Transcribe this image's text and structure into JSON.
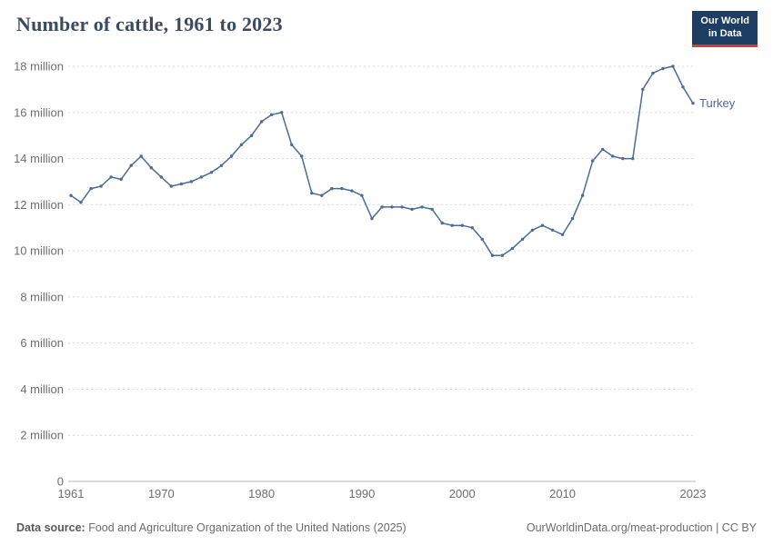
{
  "header": {
    "title": "Number of cattle, 1961 to 2023",
    "logo": {
      "line1": "Our World",
      "line2": "in Data"
    }
  },
  "chart_data": {
    "type": "line",
    "title": "Number of cattle, 1961 to 2023",
    "unit": "million",
    "xlim": [
      1961,
      2023
    ],
    "ylim": [
      0,
      18
    ],
    "grid": true,
    "legend_position": "end-of-line",
    "xticks": [
      1961,
      1970,
      1980,
      1990,
      2000,
      2010,
      2023
    ],
    "yticks": [
      {
        "value": 0,
        "label": "0"
      },
      {
        "value": 2,
        "label": "2 million"
      },
      {
        "value": 4,
        "label": "4 million"
      },
      {
        "value": 6,
        "label": "6 million"
      },
      {
        "value": 8,
        "label": "8 million"
      },
      {
        "value": 10,
        "label": "10 million"
      },
      {
        "value": 12,
        "label": "12 million"
      },
      {
        "value": 14,
        "label": "14 million"
      },
      {
        "value": 16,
        "label": "16 million"
      },
      {
        "value": 18,
        "label": "18 million"
      }
    ],
    "series": [
      {
        "name": "Turkey",
        "color": "#4c6a9c",
        "x": [
          1961,
          1962,
          1963,
          1964,
          1965,
          1966,
          1967,
          1968,
          1969,
          1970,
          1971,
          1972,
          1973,
          1974,
          1975,
          1976,
          1977,
          1978,
          1979,
          1980,
          1981,
          1982,
          1983,
          1984,
          1985,
          1986,
          1987,
          1988,
          1989,
          1990,
          1991,
          1992,
          1993,
          1994,
          1995,
          1996,
          1997,
          1998,
          1999,
          2000,
          2001,
          2002,
          2003,
          2004,
          2005,
          2006,
          2007,
          2008,
          2009,
          2010,
          2011,
          2012,
          2013,
          2014,
          2015,
          2016,
          2017,
          2018,
          2019,
          2020,
          2021,
          2022,
          2023
        ],
        "values": [
          12.4,
          12.1,
          12.7,
          12.8,
          13.2,
          13.1,
          13.7,
          14.1,
          13.6,
          13.2,
          12.8,
          12.9,
          13.0,
          13.2,
          13.4,
          13.7,
          14.1,
          14.6,
          15.0,
          15.6,
          15.9,
          16.0,
          14.6,
          14.1,
          12.5,
          12.4,
          12.7,
          12.7,
          12.6,
          12.4,
          11.4,
          11.9,
          11.9,
          11.9,
          11.8,
          11.9,
          11.8,
          11.2,
          11.1,
          11.1,
          11.0,
          10.5,
          9.8,
          9.8,
          10.1,
          10.5,
          10.9,
          11.1,
          10.9,
          10.7,
          11.4,
          12.4,
          13.9,
          14.4,
          14.1,
          14.0,
          14.0,
          17.0,
          17.7,
          17.9,
          18.0,
          17.1,
          16.4
        ]
      }
    ]
  },
  "footer": {
    "source_label": "Data source:",
    "source_text": " Food and Agriculture Organization of the United Nations (2025)",
    "credit": "OurWorldinData.org/meat-production | CC BY"
  },
  "colors": {
    "series": "#4c6a9c",
    "logo_bg": "#1d3d63",
    "logo_accent": "#dc3b2e",
    "title": "#3b4a5f",
    "tick_text": "#6e6e6e",
    "gridline": "#dadada",
    "axis": "#b9b9b9"
  }
}
